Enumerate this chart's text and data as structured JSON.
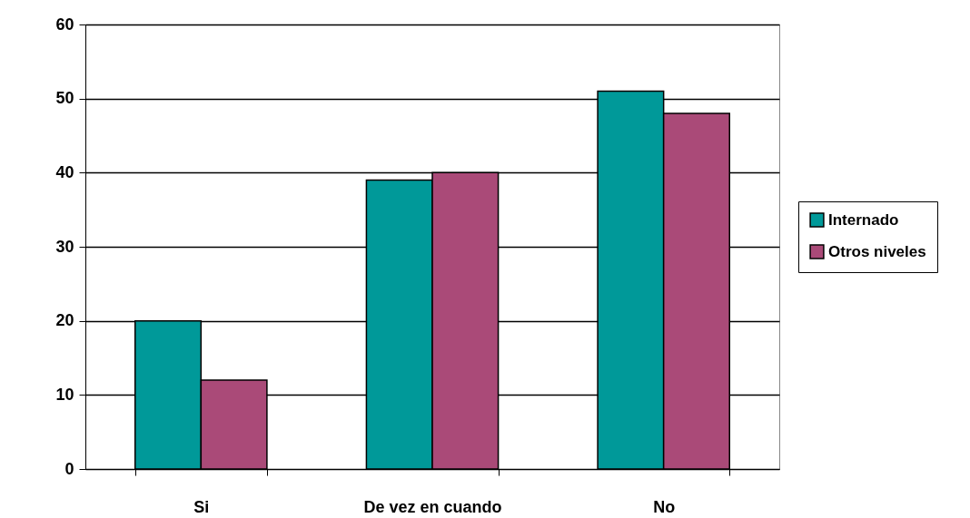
{
  "chart_data": {
    "type": "bar",
    "categories": [
      "Si",
      "De vez en cuando",
      "No"
    ],
    "series": [
      {
        "name": "Internado",
        "color": "#009999",
        "values": [
          20,
          39,
          51
        ]
      },
      {
        "name": "Otros niveles",
        "color": "#aa4a78",
        "values": [
          12,
          40,
          48
        ]
      }
    ],
    "ylim": [
      0,
      60
    ],
    "yticks": [
      0,
      10,
      20,
      30,
      40,
      50,
      60
    ],
    "grid": "y",
    "legend": "right"
  }
}
